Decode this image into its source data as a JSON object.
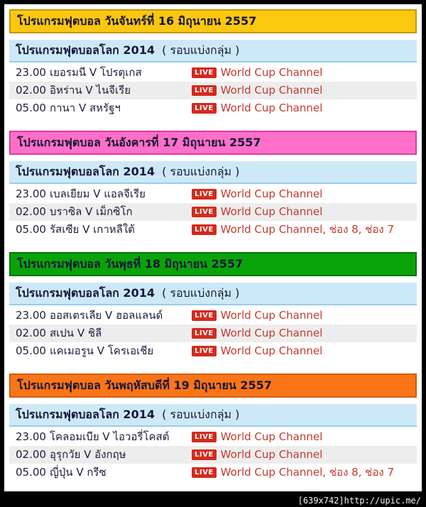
{
  "watermark": "[639x742]http://upic.me/",
  "colors": {
    "monday_header_bg": "#FBC70F",
    "tuesday_header_bg": "#FF70C8",
    "wednesday_header_bg": "#0AA30A",
    "thursday_header_bg": "#FA7517",
    "subheader_bg": "#CDE9F8",
    "alt_row_bg": "#EDEDED",
    "live_badge_bg": "#D52A1D",
    "channel_text_color": "#C43A2F"
  },
  "sections": [
    {
      "day_title": "โปรแกรมฟุตบอล วันจันทร์ที่ 16 มิถุนายน 2557",
      "league_title": "โปรแกรมฟุตบอลโลก 2014",
      "league_round": "( รอบแบ่งกลุ่ม )",
      "rows": [
        {
          "time": "23.00",
          "match": "เยอรมนี V โปรตุเกส",
          "live_label": "LIVE",
          "channels": "World Cup Channel"
        },
        {
          "time": "02.00",
          "match": "อิหร่าน V ไนจีเรีย",
          "live_label": "LIVE",
          "channels": "World Cup Channel"
        },
        {
          "time": "05.00",
          "match": "กานา V สหรัฐฯ",
          "live_label": "LIVE",
          "channels": "World Cup Channel"
        }
      ]
    },
    {
      "day_title": "โปรแกรมฟุตบอล วันอังคารที่ 17 มิถุนายน 2557",
      "league_title": "โปรแกรมฟุตบอลโลก 2014",
      "league_round": "( รอบแบ่งกลุ่ม )",
      "rows": [
        {
          "time": "23.00",
          "match": "เบลเยียม V แอลจีเรีย",
          "live_label": "LIVE",
          "channels": "World Cup Channel"
        },
        {
          "time": "02.00",
          "match": "บราซิล V เม็กซิโก",
          "live_label": "LIVE",
          "channels": "World Cup Channel"
        },
        {
          "time": "05.00",
          "match": "รัสเซีย V เกาหลีใต้",
          "live_label": "LIVE",
          "channels": "World Cup Channel, ช่อง 8, ช่อง 7"
        }
      ]
    },
    {
      "day_title": "โปรแกรมฟุตบอล วันพุธที่ 18 มิถุนายน 2557",
      "league_title": "โปรแกรมฟุตบอลโลก 2014",
      "league_round": "( รอบแบ่งกลุ่ม )",
      "rows": [
        {
          "time": "23.00",
          "match": "ออสเตรเลีย V ฮอลแลนด์",
          "live_label": "LIVE",
          "channels": "World Cup Channel"
        },
        {
          "time": "02.00",
          "match": "สเปน V ชิลี",
          "live_label": "LIVE",
          "channels": "World Cup Channel"
        },
        {
          "time": "05.00",
          "match": "แคเมอรูน V โครเอเชีย",
          "live_label": "LIVE",
          "channels": "World Cup Channel"
        }
      ]
    },
    {
      "day_title": "โปรแกรมฟุตบอล วันพฤหัสบดีที่ 19 มิถุนายน 2557",
      "league_title": "โปรแกรมฟุตบอลโลก 2014",
      "league_round": "( รอบแบ่งกลุ่ม )",
      "rows": [
        {
          "time": "23.00",
          "match": "โคลอมเบีย V ไอวอรี่โคสต์",
          "live_label": "LIVE",
          "channels": "World Cup Channel"
        },
        {
          "time": "02.00",
          "match": "อุรุกวัย V อังกฤษ",
          "live_label": "LIVE",
          "channels": "World Cup Channel"
        },
        {
          "time": "05.00",
          "match": "ญี่ปุ่น V กรีซ",
          "live_label": "LIVE",
          "channels": "World Cup Channel, ช่อง 8, ช่อง 7"
        }
      ]
    }
  ]
}
